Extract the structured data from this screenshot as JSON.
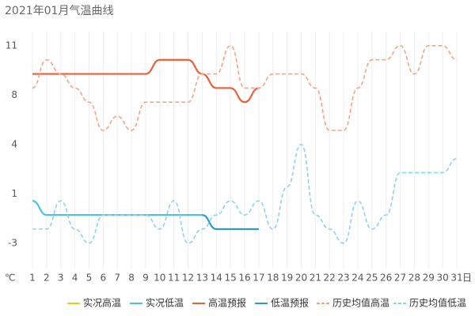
{
  "chart_data": {
    "type": "line",
    "title": "2021年01月气温曲线",
    "y_unit": "℃",
    "x_unit": "日",
    "categories": [
      "1",
      "2",
      "3",
      "4",
      "5",
      "6",
      "7",
      "8",
      "9",
      "10",
      "11",
      "12",
      "13",
      "14",
      "15",
      "16",
      "17",
      "18",
      "19",
      "20",
      "21",
      "22",
      "23",
      "24",
      "25",
      "26",
      "27",
      "28",
      "29",
      "30",
      "31"
    ],
    "ylim": [
      -4.8,
      12
    ],
    "yticks": [
      {
        "value": -3,
        "label": "-3"
      },
      {
        "value": 0.5,
        "label": "1"
      },
      {
        "value": 4,
        "label": "4"
      },
      {
        "value": 7.5,
        "label": "8"
      },
      {
        "value": 11,
        "label": "11"
      }
    ],
    "grid": "vertical",
    "series": [
      {
        "name": "实况高温",
        "color": "#f5c518",
        "dash": false,
        "values": [
          null,
          null,
          null,
          null,
          null,
          null,
          null,
          null,
          null,
          null,
          null,
          null,
          null,
          null,
          null,
          null,
          null,
          null,
          null,
          null,
          null,
          null,
          null,
          null,
          null,
          null,
          null,
          null,
          null,
          null,
          null
        ]
      },
      {
        "name": "实况低温",
        "color": "#4cc3df",
        "dash": false,
        "values": [
          0,
          -1,
          -1,
          -1,
          -1,
          -1,
          -1,
          -1,
          -1,
          -1,
          -1,
          -1,
          -1,
          null,
          null,
          null,
          null,
          null,
          null,
          null,
          null,
          null,
          null,
          null,
          null,
          null,
          null,
          null,
          null,
          null,
          null
        ]
      },
      {
        "name": "高温预报",
        "color": "#e8613a",
        "dash": false,
        "values": [
          9,
          9,
          9,
          9,
          9,
          9,
          9,
          9,
          9,
          10,
          10,
          10,
          9,
          8,
          8,
          7,
          8,
          null,
          null,
          null,
          null,
          null,
          null,
          null,
          null,
          null,
          null,
          null,
          null,
          null,
          null
        ]
      },
      {
        "name": "低温预报",
        "color": "#2b9dc8",
        "dash": false,
        "values": [
          null,
          null,
          null,
          null,
          null,
          null,
          null,
          null,
          null,
          null,
          null,
          null,
          -1,
          -2,
          -2,
          -2,
          -2,
          null,
          null,
          null,
          null,
          null,
          null,
          null,
          null,
          null,
          null,
          null,
          null,
          null,
          null
        ]
      },
      {
        "name": "历史均值高温",
        "color": "#f4a582",
        "dash": true,
        "values": [
          8,
          10,
          9,
          8,
          7,
          5,
          6,
          5,
          7,
          7,
          7,
          7,
          9,
          9,
          11,
          8,
          8,
          9,
          9,
          9,
          8,
          5,
          5,
          8,
          10,
          10,
          11,
          9,
          11,
          11,
          10
        ]
      },
      {
        "name": "历史均值低温",
        "color": "#8fd3ea",
        "dash": true,
        "values": [
          -2,
          -2,
          0,
          -2,
          -3,
          -1,
          -1,
          -1,
          -1,
          -2,
          0,
          -3,
          -2,
          -1,
          0,
          -1,
          0,
          -2,
          1,
          4,
          -1,
          -2,
          -3,
          0,
          -2,
          -1,
          2,
          2,
          2,
          2,
          3
        ]
      }
    ]
  }
}
